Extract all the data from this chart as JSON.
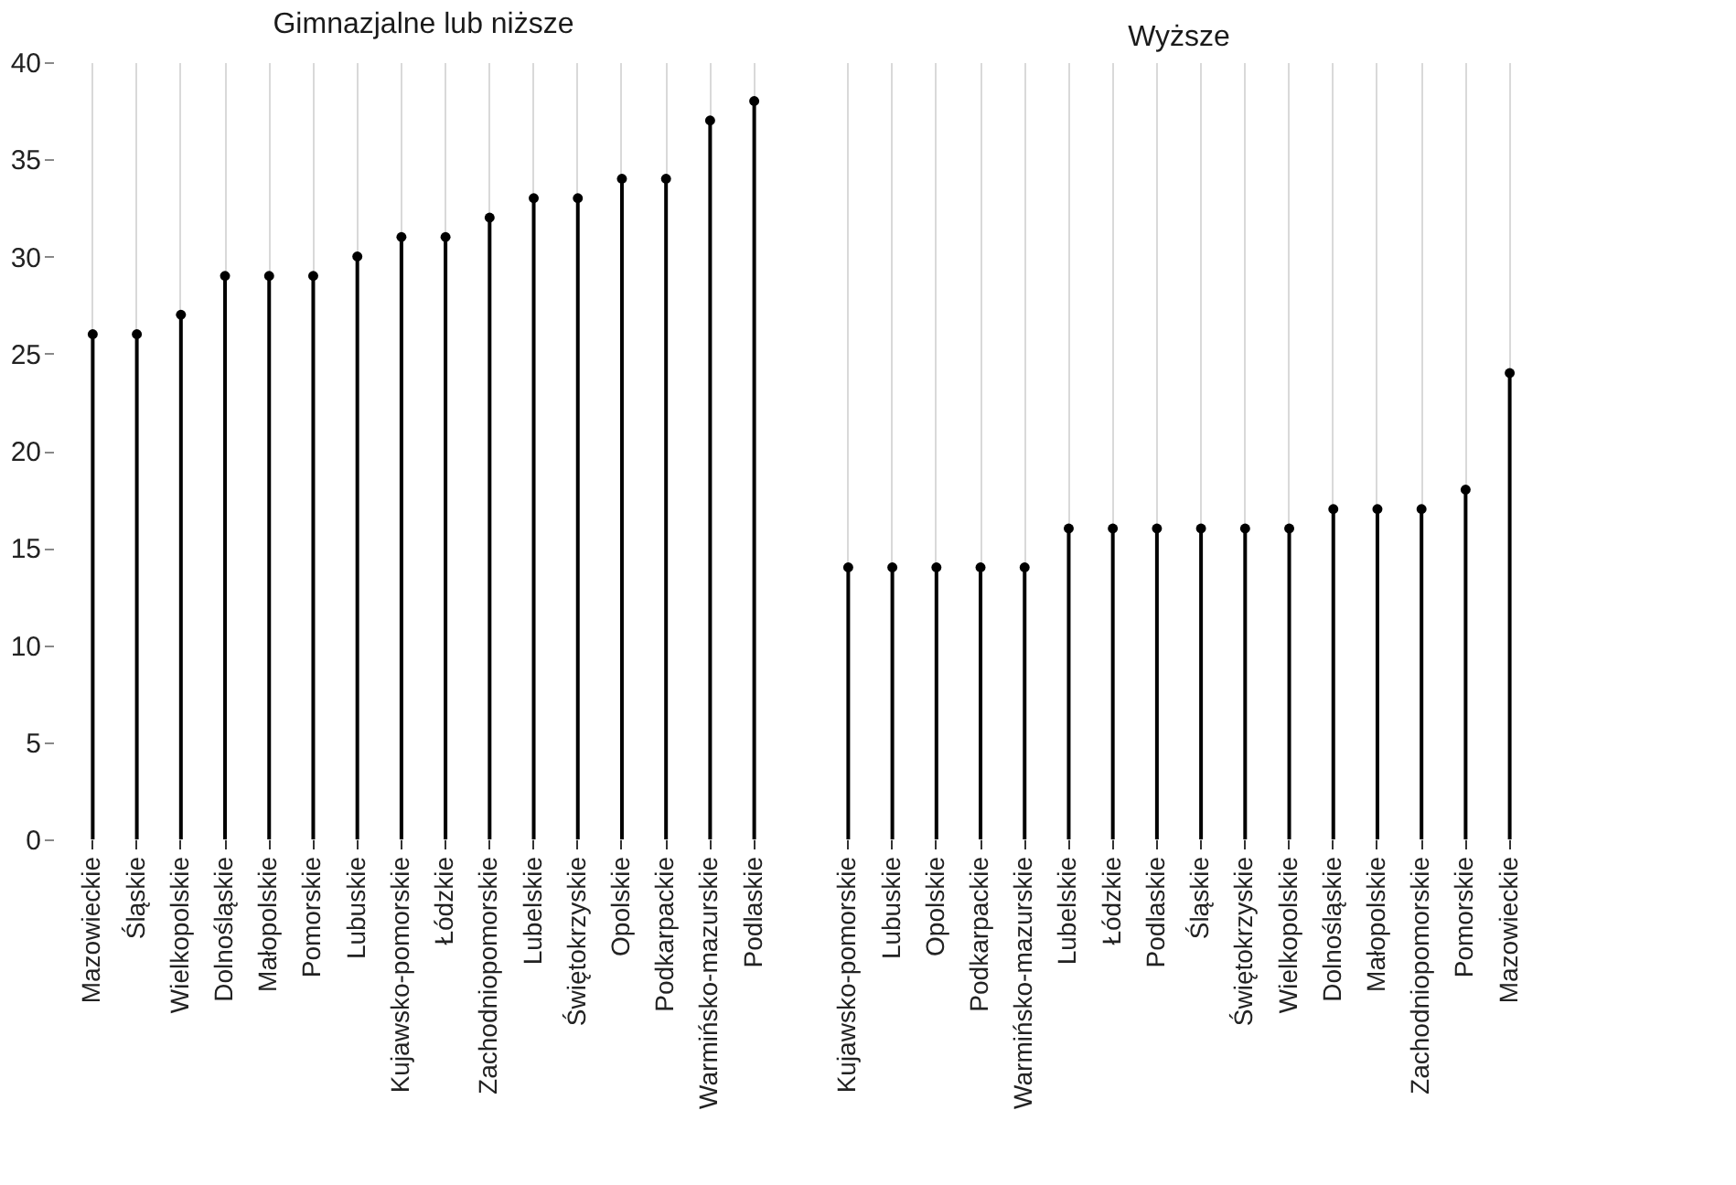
{
  "chart_data": [
    {
      "type": "lollipop",
      "title": "Gimnazjalne lub niższe",
      "categories": [
        "Mazowieckie",
        "Śląskie",
        "Wielkopolskie",
        "Dolnośląskie",
        "Małopolskie",
        "Pomorskie",
        "Lubuskie",
        "Kujawsko-pomorskie",
        "Łódzkie",
        "Zachodniopomorskie",
        "Lubelskie",
        "Świętokrzyskie",
        "Opolskie",
        "Podkarpackie",
        "Warmińsko-mazurskie",
        "Podlaskie"
      ],
      "values": [
        26,
        26,
        27,
        29,
        29,
        29,
        30,
        31,
        31,
        32,
        33,
        33,
        34,
        34,
        37,
        38
      ],
      "color": "#000000",
      "marker": "circle",
      "ylim": [
        0,
        40
      ],
      "yticks": [
        0,
        5,
        10,
        15,
        20,
        25,
        30,
        35,
        40
      ],
      "grid": "x"
    },
    {
      "type": "lollipop",
      "title": "Wyższe",
      "categories": [
        "Kujawsko-pomorskie",
        "Lubuskie",
        "Opolskie",
        "Podkarpackie",
        "Warmińsko-mazurskie",
        "Lubelskie",
        "Łódzkie",
        "Podlaskie",
        "Śląskie",
        "Świętokrzyskie",
        "Wielkopolskie",
        "Dolnośląskie",
        "Małopolskie",
        "Zachodniopomorskie",
        "Pomorskie",
        "Mazowieckie"
      ],
      "values": [
        14,
        14,
        14,
        14,
        14,
        16,
        16,
        16,
        16,
        16,
        16,
        17,
        17,
        17,
        18,
        24
      ],
      "color": "#000000",
      "marker": "circle",
      "ylim": [
        0,
        40
      ],
      "yticks": [
        0,
        5,
        10,
        15,
        20,
        25,
        30,
        35,
        40
      ],
      "grid": "x",
      "tick_labels": "x"
    }
  ]
}
